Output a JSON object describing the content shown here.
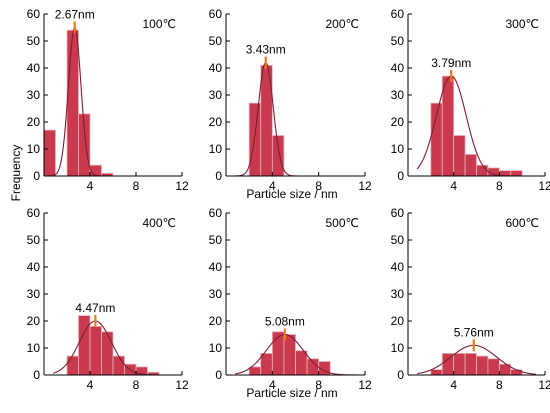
{
  "figure": {
    "ylabel": "Frequency",
    "xlabel_middle_top": "Particle size / nm",
    "xlabel_middle_bottom": "Particle size / nm"
  },
  "colors": {
    "bar_fill": "#c93a4f",
    "bar_stroke": "#e9b3ba",
    "curve": "#7a1f33",
    "marker": "#f07a1a",
    "axis": "#000000"
  },
  "chart_data": [
    {
      "type": "bar",
      "temperature": "100℃",
      "peak_label": "2.67nm",
      "peak_x": 2.67,
      "bin_starts": [
        0,
        2,
        3,
        4,
        5
      ],
      "bin_width": 1,
      "values": [
        17,
        54,
        23,
        4,
        1
      ],
      "curve_peak": 55,
      "curve_sigma": 0.55,
      "xlim": [
        0,
        12
      ],
      "ylim": [
        0,
        60
      ],
      "xticks": [
        4,
        8,
        12
      ],
      "yticks": [
        0,
        10,
        20,
        30,
        40,
        50,
        60
      ]
    },
    {
      "type": "bar",
      "temperature": "200℃",
      "peak_label": "3.43nm",
      "peak_x": 3.43,
      "bin_starts": [
        2,
        3,
        4
      ],
      "bin_width": 1,
      "values": [
        27,
        41,
        15
      ],
      "curve_peak": 42,
      "curve_sigma": 0.65,
      "xlim": [
        0,
        12
      ],
      "ylim": [
        0,
        60
      ],
      "xticks": [
        4,
        8,
        12
      ],
      "yticks": [
        0,
        10,
        20,
        30,
        40,
        50,
        60
      ]
    },
    {
      "type": "bar",
      "temperature": "300℃",
      "peak_label": "3.79nm",
      "peak_x": 3.79,
      "bin_starts": [
        2,
        3,
        4,
        5,
        6,
        7,
        8,
        9
      ],
      "bin_width": 1,
      "values": [
        27,
        37,
        15,
        8,
        4,
        3,
        2,
        2
      ],
      "curve_peak": 37,
      "curve_sigma": 1.3,
      "xlim": [
        0,
        12
      ],
      "ylim": [
        0,
        60
      ],
      "xticks": [
        4,
        8,
        12
      ],
      "yticks": [
        0,
        10,
        20,
        30,
        40,
        50,
        60
      ]
    },
    {
      "type": "bar",
      "temperature": "400℃",
      "peak_label": "4.47nm",
      "peak_x": 4.47,
      "bin_starts": [
        2,
        3,
        4,
        5,
        6,
        7,
        8,
        9
      ],
      "bin_width": 1,
      "values": [
        7,
        22,
        18,
        16,
        7,
        4,
        3,
        1
      ],
      "curve_peak": 20,
      "curve_sigma": 1.4,
      "xlim": [
        0,
        12
      ],
      "ylim": [
        0,
        60
      ],
      "xticks": [
        4,
        8,
        12
      ],
      "yticks": [
        0,
        10,
        20,
        30,
        40,
        50,
        60
      ]
    },
    {
      "type": "bar",
      "temperature": "500℃",
      "peak_label": "5.08nm",
      "peak_x": 5.08,
      "bin_starts": [
        2,
        3,
        4,
        5,
        6,
        7,
        8
      ],
      "bin_width": 1,
      "values": [
        3,
        8,
        16,
        15,
        9,
        6,
        5
      ],
      "curve_peak": 15,
      "curve_sigma": 1.6,
      "xlim": [
        0,
        12
      ],
      "ylim": [
        0,
        60
      ],
      "xticks": [
        4,
        8,
        12
      ],
      "yticks": [
        0,
        10,
        20,
        30,
        40,
        50,
        60
      ]
    },
    {
      "type": "bar",
      "temperature": "600℃",
      "peak_label": "5.76nm",
      "peak_x": 5.76,
      "bin_starts": [
        2,
        3,
        4,
        5,
        6,
        7,
        8,
        9
      ],
      "bin_width": 1,
      "values": [
        2,
        8,
        8,
        8,
        7,
        6,
        4,
        2
      ],
      "curve_peak": 11,
      "curve_sigma": 2.0,
      "xlim": [
        0,
        12
      ],
      "ylim": [
        0,
        60
      ],
      "xticks": [
        4,
        8,
        12
      ],
      "yticks": [
        0,
        10,
        20,
        30,
        40,
        50,
        60
      ]
    }
  ]
}
